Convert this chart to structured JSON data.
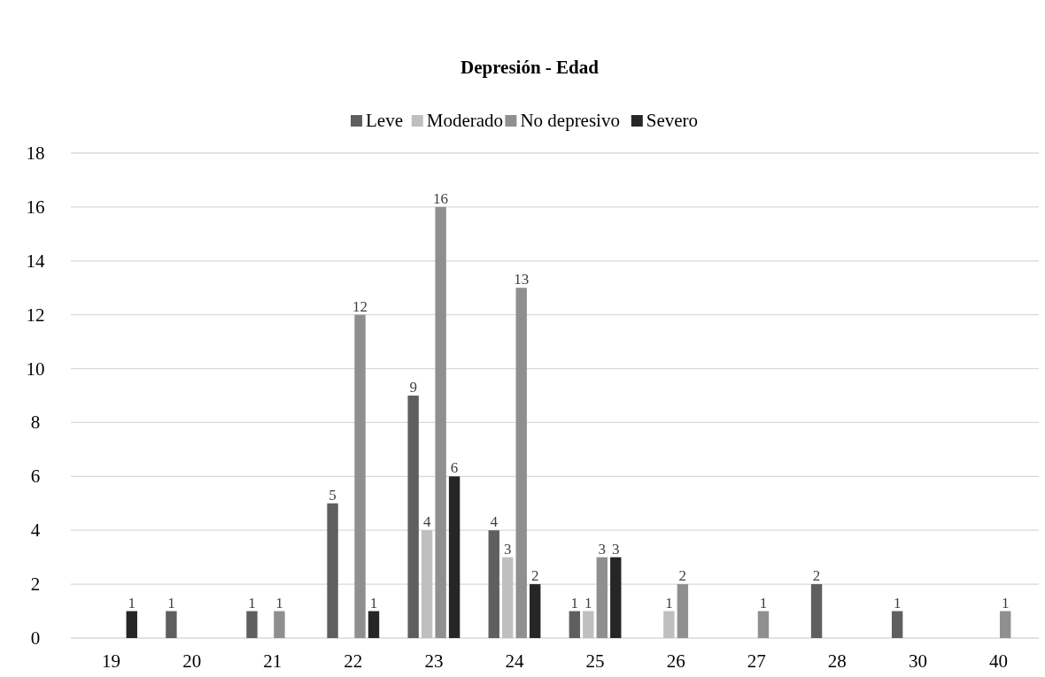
{
  "chart_data": {
    "type": "bar",
    "title": "Depresión - Edad",
    "categories": [
      "19",
      "20",
      "21",
      "22",
      "23",
      "24",
      "25",
      "26",
      "27",
      "28",
      "30",
      "40"
    ],
    "series": [
      {
        "name": "Leve",
        "color": "#5f5f5f",
        "values": [
          null,
          1,
          1,
          5,
          9,
          4,
          1,
          null,
          null,
          2,
          1,
          null
        ]
      },
      {
        "name": "Moderado",
        "color": "#bfbfbf",
        "values": [
          null,
          null,
          null,
          null,
          4,
          3,
          1,
          1,
          null,
          null,
          null,
          null
        ]
      },
      {
        "name": "No depresivo",
        "color": "#8f8f8f",
        "values": [
          null,
          null,
          1,
          12,
          16,
          13,
          3,
          2,
          1,
          null,
          null,
          1
        ]
      },
      {
        "name": "Severo",
        "color": "#262626",
        "values": [
          1,
          null,
          null,
          1,
          6,
          2,
          3,
          null,
          null,
          null,
          null,
          null
        ]
      }
    ],
    "ylim": [
      0,
      18
    ],
    "yticks": [
      0,
      2,
      4,
      6,
      8,
      10,
      12,
      14,
      16,
      18
    ],
    "grid": "y",
    "legend": "top",
    "data_labels": true
  }
}
